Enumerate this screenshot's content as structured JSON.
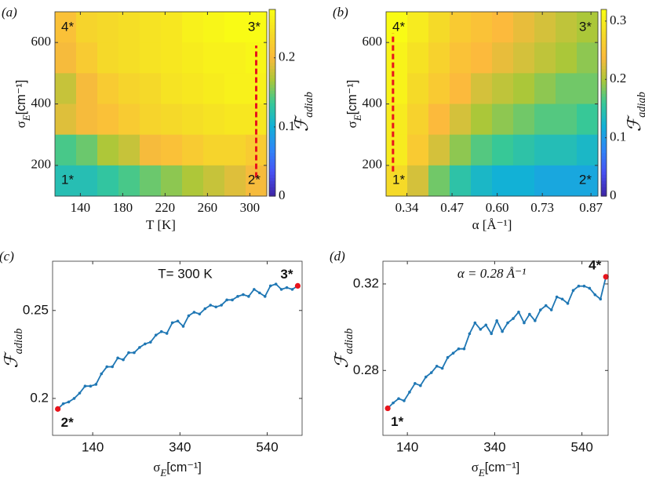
{
  "chart_data": [
    {
      "type": "heatmap",
      "panel_label": "(a)",
      "xlabel": "T [K]",
      "ylabel": {
        "main": "σ",
        "sub": "E",
        "rest": "[cm⁻¹]"
      },
      "colorbar_label": {
        "main": "ℱ",
        "sub": "adiab"
      },
      "x": [
        126,
        146,
        166,
        186,
        206,
        226,
        246,
        266,
        286,
        306
      ],
      "y": [
        650,
        550,
        450,
        350,
        250,
        150
      ],
      "z": [
        [
          0.21,
          0.23,
          0.235,
          0.24,
          0.245,
          0.25,
          0.26,
          0.265,
          0.27,
          0.27
        ],
        [
          0.2,
          0.22,
          0.235,
          0.24,
          0.245,
          0.25,
          0.255,
          0.26,
          0.26,
          0.265
        ],
        [
          0.18,
          0.2,
          0.22,
          0.23,
          0.235,
          0.245,
          0.25,
          0.255,
          0.26,
          0.26
        ],
        [
          0.19,
          0.2,
          0.21,
          0.22,
          0.23,
          0.235,
          0.24,
          0.245,
          0.25,
          0.25
        ],
        [
          0.14,
          0.15,
          0.17,
          0.18,
          0.2,
          0.21,
          0.22,
          0.23,
          0.23,
          0.22
        ],
        [
          0.12,
          0.12,
          0.13,
          0.14,
          0.15,
          0.16,
          0.17,
          0.18,
          0.19,
          0.2
        ]
      ],
      "xlim": [
        116,
        316
      ],
      "ylim": [
        100,
        700
      ],
      "xticks": [
        140,
        180,
        220,
        260,
        300
      ],
      "yticks": [
        200,
        400,
        600
      ],
      "clim": [
        0,
        0.27
      ],
      "cticks": [
        0,
        0.1,
        0.2
      ],
      "colormap": "parula",
      "dashed_line": {
        "x": 306,
        "y": [
          160,
          590
        ],
        "color": "#e8141c"
      },
      "annotations": [
        {
          "text": "4*",
          "corner": "top-left"
        },
        {
          "text": "3*",
          "corner": "top-right"
        },
        {
          "text": "1*",
          "corner": "bottom-left"
        },
        {
          "text": "2*",
          "corner": "bottom-right"
        }
      ]
    },
    {
      "type": "heatmap",
      "panel_label": "(b)",
      "xlabel": "α [Å⁻¹]",
      "ylabel": {
        "main": "σ",
        "sub": "E",
        "rest": "[cm⁻¹]"
      },
      "colorbar_label": {
        "main": "ℱ",
        "sub": "adiab"
      },
      "x": [
        0.3105,
        0.3715,
        0.4325,
        0.4935,
        0.5545,
        0.6155,
        0.6765,
        0.7375,
        0.7985,
        0.8595
      ],
      "y": [
        650,
        550,
        450,
        350,
        250,
        150
      ],
      "z": [
        [
          0.32,
          0.3,
          0.28,
          0.26,
          0.25,
          0.24,
          0.23,
          0.22,
          0.21,
          0.2
        ],
        [
          0.31,
          0.29,
          0.27,
          0.25,
          0.24,
          0.23,
          0.22,
          0.21,
          0.2,
          0.19
        ],
        [
          0.31,
          0.28,
          0.26,
          0.24,
          0.22,
          0.21,
          0.2,
          0.19,
          0.18,
          0.18
        ],
        [
          0.3,
          0.27,
          0.24,
          0.22,
          0.2,
          0.19,
          0.18,
          0.17,
          0.17,
          0.16
        ],
        [
          0.3,
          0.26,
          0.22,
          0.19,
          0.17,
          0.16,
          0.15,
          0.14,
          0.14,
          0.13
        ],
        [
          0.28,
          0.22,
          0.18,
          0.15,
          0.13,
          0.12,
          0.12,
          0.11,
          0.11,
          0.11
        ]
      ],
      "xlim": [
        0.28,
        0.89
      ],
      "ylim": [
        100,
        700
      ],
      "xticks": [
        0.34,
        0.47,
        {
          "value": 0.6,
          "label": "0.60"
        },
        0.73,
        0.87
      ],
      "yticks": [
        200,
        400,
        600
      ],
      "clim": [
        0,
        0.32
      ],
      "cticks": [
        0,
        0.1,
        0.2,
        0.3
      ],
      "colormap": "parula",
      "dashed_line": {
        "x": 0.3,
        "y": [
          180,
          630
        ],
        "color": "#e8141c"
      },
      "annotations": [
        {
          "text": "4*",
          "corner": "top-left"
        },
        {
          "text": "3*",
          "corner": "top-right"
        },
        {
          "text": "1*",
          "corner": "bottom-left"
        },
        {
          "text": "2*",
          "corner": "bottom-right"
        }
      ]
    },
    {
      "type": "line",
      "panel_label": "(c)",
      "xlabel": {
        "main": "σ",
        "sub": "E",
        "rest": "[cm⁻¹]"
      },
      "ylabel": {
        "main": "ℱ",
        "sub": "adiab"
      },
      "annotation": "T= 300 K",
      "start_label": "2*",
      "end_label": "3*",
      "color": "#1f77b4",
      "highlight_color": "#e8141c",
      "x": [
        60,
        72.5,
        85,
        97.5,
        110,
        122.5,
        135,
        147.5,
        160,
        172.5,
        185,
        197.5,
        210,
        222.5,
        235,
        247.5,
        260,
        272.5,
        285,
        297.5,
        310,
        322.5,
        335,
        347.5,
        360,
        372.5,
        385,
        397.5,
        410,
        422.5,
        435,
        447.5,
        460,
        472.5,
        485,
        497.5,
        510,
        522.5,
        535,
        547.5,
        560,
        572.5,
        585,
        597.5,
        610
      ],
      "values": [
        0.194,
        0.197,
        0.198,
        0.2,
        0.203,
        0.207,
        0.207,
        0.208,
        0.214,
        0.218,
        0.218,
        0.223,
        0.222,
        0.226,
        0.226,
        0.229,
        0.231,
        0.232,
        0.236,
        0.238,
        0.237,
        0.243,
        0.244,
        0.241,
        0.247,
        0.249,
        0.248,
        0.251,
        0.253,
        0.252,
        0.253,
        0.256,
        0.256,
        0.258,
        0.259,
        0.258,
        0.262,
        0.26,
        0.258,
        0.264,
        0.265,
        0.262,
        0.263,
        0.262,
        0.264
      ],
      "xlim": [
        48,
        620
      ],
      "ylim": [
        0.179,
        0.278
      ],
      "xticks": [
        140,
        340,
        540
      ],
      "yticks": [
        0.2,
        0.25
      ]
    },
    {
      "type": "line",
      "panel_label": "(d)",
      "xlabel": {
        "main": "σ",
        "sub": "E",
        "rest": "[cm⁻¹]"
      },
      "ylabel": {
        "main": "ℱ",
        "sub": "adiab"
      },
      "annotation": "α = 0.28 Å⁻¹",
      "start_label": "1*",
      "end_label": "4*",
      "color": "#1f77b4",
      "highlight_color": "#e8141c",
      "x": [
        95,
        107.5,
        120,
        132.5,
        145,
        157.5,
        170,
        182.5,
        195,
        207.5,
        220,
        232.5,
        245,
        257.5,
        270,
        282.5,
        295,
        307.5,
        320,
        332.5,
        345,
        357.5,
        370,
        382.5,
        395,
        407.5,
        420,
        432.5,
        445,
        457.5,
        470,
        482.5,
        495,
        507.5,
        520,
        532.5,
        545,
        557.5,
        570,
        582.5,
        595
      ],
      "values": [
        0.2625,
        0.265,
        0.267,
        0.266,
        0.27,
        0.274,
        0.273,
        0.277,
        0.279,
        0.282,
        0.281,
        0.286,
        0.288,
        0.29,
        0.29,
        0.297,
        0.302,
        0.299,
        0.301,
        0.297,
        0.303,
        0.298,
        0.302,
        0.304,
        0.307,
        0.302,
        0.306,
        0.303,
        0.308,
        0.31,
        0.308,
        0.314,
        0.313,
        0.311,
        0.317,
        0.319,
        0.319,
        0.318,
        0.315,
        0.313,
        0.3233
      ],
      "xlim": [
        84,
        600
      ],
      "ylim": [
        0.25,
        0.3305
      ],
      "xticks": [
        140,
        340,
        540
      ],
      "yticks": [
        0.28,
        0.32
      ]
    }
  ]
}
